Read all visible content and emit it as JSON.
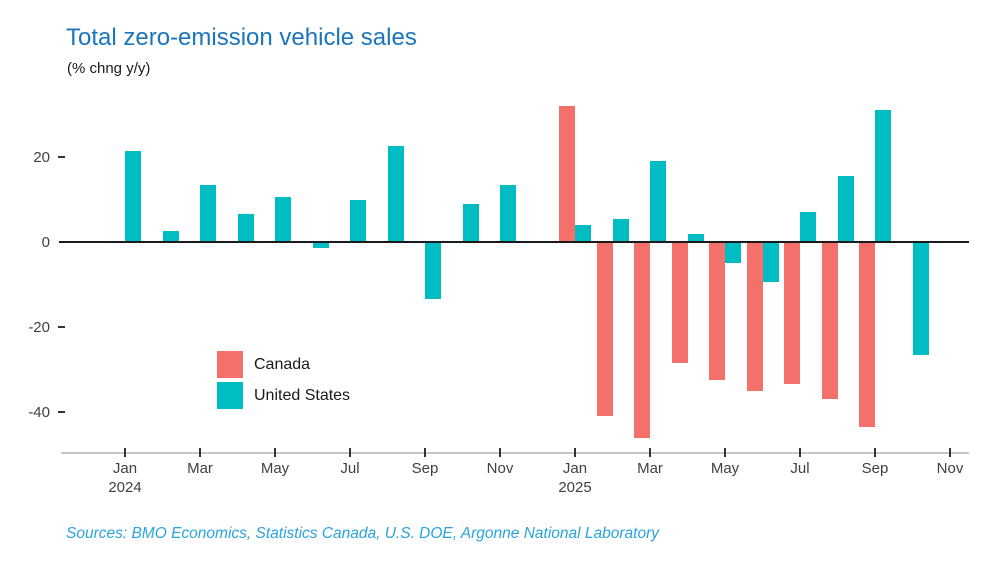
{
  "title": "Total zero-emission vehicle sales",
  "subtitle": "(% chng y/y)",
  "source_note": "Sources: BMO Economics, Statistics Canada, U.S. DOE, Argonne National Laboratory",
  "colors": {
    "title": "#1B75BC",
    "source": "#29A3DE",
    "canada": "#F4716B",
    "united_states": "#00BDC4",
    "axis_text": "#404040",
    "zero_line": "#1A1A1A",
    "axis_line": "#C6C6C6",
    "tick_mark": "#333333"
  },
  "legend": {
    "items": [
      {
        "label": "Canada",
        "color_key": "canada"
      },
      {
        "label": "United States",
        "color_key": "united_states"
      }
    ]
  },
  "chart_data": {
    "type": "bar",
    "title": "Total zero-emission vehicle sales",
    "ylabel": "(% chng y/y)",
    "grid": false,
    "legend_position": "inside-lower-left",
    "months": [
      "Jan 2024",
      "Feb 2024",
      "Mar 2024",
      "Apr 2024",
      "May 2024",
      "Jun 2024",
      "Jul 2024",
      "Aug 2024",
      "Sep 2024",
      "Oct 2024",
      "Nov 2024",
      "Dec 2024",
      "Jan 2025",
      "Feb 2025",
      "Mar 2025",
      "Apr 2025",
      "May 2025",
      "Jun 2025",
      "Jul 2025",
      "Aug 2025",
      "Sep 2025",
      "Oct 2025",
      "Nov 2025"
    ],
    "series": [
      {
        "name": "Canada",
        "color": "#F4716B",
        "values": [
          null,
          null,
          null,
          null,
          null,
          null,
          null,
          null,
          null,
          null,
          null,
          null,
          32,
          -41,
          -46,
          -28.5,
          -32.5,
          -35,
          -33.5,
          -37,
          -43.5,
          null,
          null
        ]
      },
      {
        "name": "United States",
        "color": "#00BDC4",
        "values": [
          21.5,
          2.5,
          13.5,
          6.5,
          10.5,
          -1.5,
          10,
          22.5,
          -13.5,
          9,
          13.5,
          null,
          4,
          5.5,
          19,
          2,
          -5,
          -9.5,
          7,
          15.5,
          31,
          -26.5,
          null
        ]
      }
    ],
    "y_ticks": [
      20,
      0,
      -20,
      -40
    ],
    "ylim": [
      -48,
      34
    ],
    "x_ticks": [
      {
        "index": 0,
        "label": "Jan",
        "year": "2024"
      },
      {
        "index": 2,
        "label": "Mar"
      },
      {
        "index": 4,
        "label": "May"
      },
      {
        "index": 6,
        "label": "Jul"
      },
      {
        "index": 8,
        "label": "Sep"
      },
      {
        "index": 10,
        "label": "Nov"
      },
      {
        "index": 12,
        "label": "Jan",
        "year": "2025"
      },
      {
        "index": 14,
        "label": "Mar"
      },
      {
        "index": 16,
        "label": "May"
      },
      {
        "index": 18,
        "label": "Jul"
      },
      {
        "index": 20,
        "label": "Sep"
      },
      {
        "index": 22,
        "label": "Nov"
      }
    ]
  }
}
